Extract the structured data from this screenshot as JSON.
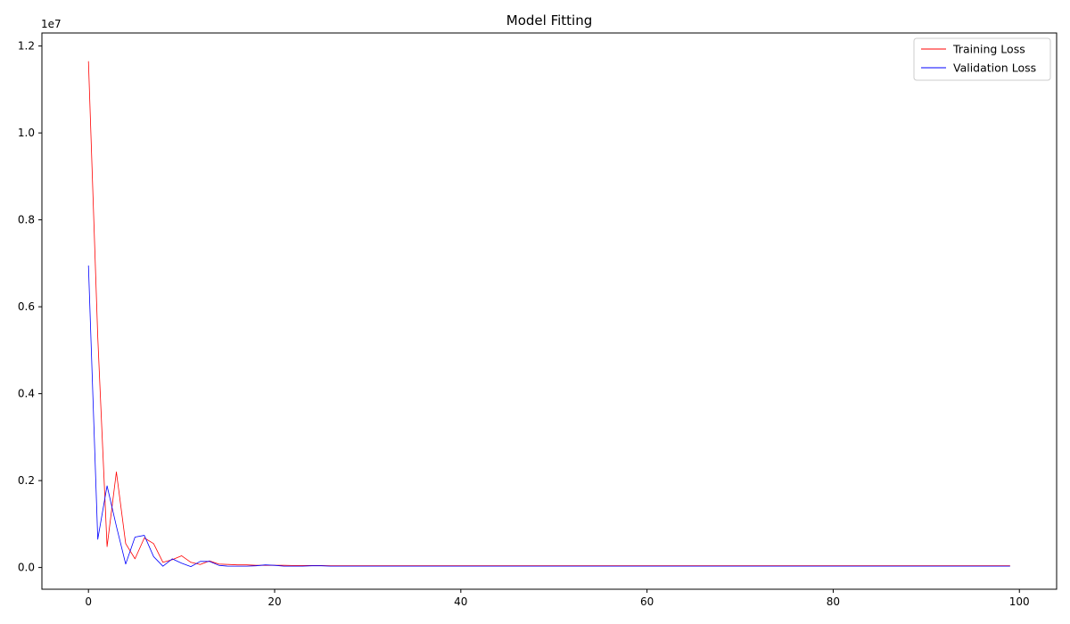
{
  "chart_data": {
    "type": "line",
    "title": "Model Fitting",
    "xlabel": "",
    "ylabel": "",
    "y_offset_label": "1e7",
    "xlim": [
      -5,
      104
    ],
    "ylim": [
      -0.5,
      12.3
    ],
    "y_unit_multiplier": 10000000,
    "x_ticks": [
      0,
      20,
      40,
      60,
      80,
      100
    ],
    "x_tick_labels": [
      "0",
      "20",
      "40",
      "60",
      "80",
      "100"
    ],
    "y_ticks": [
      0,
      2,
      4,
      6,
      8,
      10,
      12
    ],
    "y_tick_labels": [
      "0.0",
      "0.2",
      "0.4",
      "0.6",
      "0.8",
      "1.0",
      "1.2"
    ],
    "grid": false,
    "legend_position": "top-right",
    "series": [
      {
        "name": "Training Loss",
        "color": "#ff0000",
        "values": [
          11.65,
          5.3,
          0.48,
          2.2,
          0.55,
          0.2,
          0.68,
          0.55,
          0.12,
          0.18,
          0.27,
          0.12,
          0.07,
          0.15,
          0.08,
          0.07,
          0.06,
          0.06,
          0.05,
          0.05,
          0.05,
          0.05,
          0.045,
          0.045,
          0.045,
          0.045,
          0.04,
          0.04,
          0.04,
          0.04,
          0.04,
          0.04,
          0.04,
          0.04,
          0.04,
          0.04,
          0.04,
          0.04,
          0.04,
          0.04,
          0.04,
          0.04,
          0.04,
          0.04,
          0.04,
          0.04,
          0.04,
          0.04,
          0.04,
          0.04,
          0.04,
          0.04,
          0.04,
          0.04,
          0.04,
          0.04,
          0.04,
          0.04,
          0.04,
          0.04,
          0.04,
          0.04,
          0.04,
          0.04,
          0.04,
          0.04,
          0.04,
          0.04,
          0.04,
          0.04,
          0.04,
          0.04,
          0.04,
          0.04,
          0.04,
          0.04,
          0.04,
          0.04,
          0.04,
          0.04,
          0.04,
          0.04,
          0.04,
          0.04,
          0.04,
          0.04,
          0.04,
          0.04,
          0.04,
          0.04,
          0.04,
          0.04,
          0.04,
          0.04,
          0.04,
          0.04,
          0.04,
          0.04,
          0.04,
          0.04
        ]
      },
      {
        "name": "Validation Loss",
        "color": "#0000ff",
        "values": [
          6.95,
          0.65,
          1.88,
          0.95,
          0.08,
          0.7,
          0.74,
          0.25,
          0.03,
          0.2,
          0.1,
          0.02,
          0.14,
          0.14,
          0.05,
          0.03,
          0.03,
          0.03,
          0.04,
          0.06,
          0.05,
          0.03,
          0.03,
          0.03,
          0.04,
          0.04,
          0.03,
          0.03,
          0.03,
          0.03,
          0.03,
          0.03,
          0.03,
          0.03,
          0.03,
          0.03,
          0.03,
          0.03,
          0.03,
          0.03,
          0.03,
          0.03,
          0.03,
          0.03,
          0.03,
          0.03,
          0.03,
          0.03,
          0.03,
          0.03,
          0.03,
          0.03,
          0.03,
          0.03,
          0.03,
          0.03,
          0.03,
          0.03,
          0.03,
          0.03,
          0.03,
          0.03,
          0.03,
          0.03,
          0.03,
          0.03,
          0.03,
          0.03,
          0.03,
          0.03,
          0.03,
          0.03,
          0.03,
          0.03,
          0.03,
          0.03,
          0.03,
          0.03,
          0.03,
          0.03,
          0.03,
          0.03,
          0.03,
          0.03,
          0.03,
          0.03,
          0.03,
          0.03,
          0.03,
          0.03,
          0.03,
          0.03,
          0.03,
          0.03,
          0.03,
          0.03,
          0.03,
          0.03,
          0.03,
          0.03
        ]
      }
    ]
  }
}
